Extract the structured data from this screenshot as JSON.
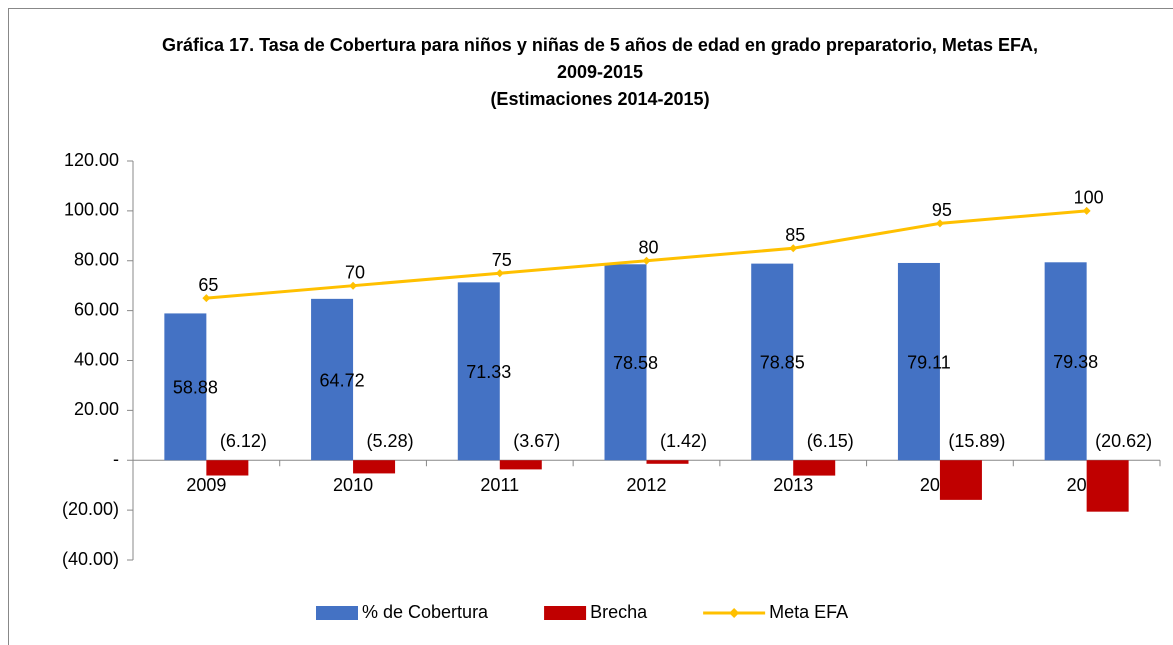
{
  "chart_data": {
    "type": "bar",
    "title": "Gráfica 17. Tasa de Cobertura para niños y niñas de 5 años de edad en grado preparatorio, Metas EFA, 2009-2015",
    "subtitle": "(Estimaciones 2014-2015)",
    "categories": [
      "2009",
      "2010",
      "2011",
      "2012",
      "2013",
      "2014",
      "2015"
    ],
    "series": [
      {
        "name": "% de Cobertura",
        "color": "#4472c4",
        "type": "bar",
        "values": [
          58.88,
          64.72,
          71.33,
          78.58,
          78.85,
          79.11,
          79.38
        ]
      },
      {
        "name": "Brecha",
        "color": "#c00000",
        "type": "bar",
        "values": [
          -6.12,
          -5.28,
          -3.67,
          -1.42,
          -6.15,
          -15.89,
          -20.62
        ],
        "value_labels": [
          "(6.12)",
          "(5.28)",
          "(3.67)",
          "(1.42)",
          "(6.15)",
          "(15.89)",
          "(20.62)"
        ]
      },
      {
        "name": "Meta EFA",
        "color": "#ffc000",
        "type": "line",
        "values": [
          65,
          70,
          75,
          80,
          85,
          95,
          100
        ]
      }
    ],
    "ylim": [
      -40,
      120
    ],
    "yticks": [
      {
        "value": -40,
        "label": "(40.00)"
      },
      {
        "value": -20,
        "label": "(20.00)"
      },
      {
        "value": 0,
        "label": "-"
      },
      {
        "value": 20,
        "label": "20.00"
      },
      {
        "value": 40,
        "label": "40.00"
      },
      {
        "value": 60,
        "label": "60.00"
      },
      {
        "value": 80,
        "label": "80.00"
      },
      {
        "value": 100,
        "label": "100.00"
      },
      {
        "value": 120,
        "label": "120.00"
      }
    ],
    "grid": false,
    "legend": "bottom"
  }
}
